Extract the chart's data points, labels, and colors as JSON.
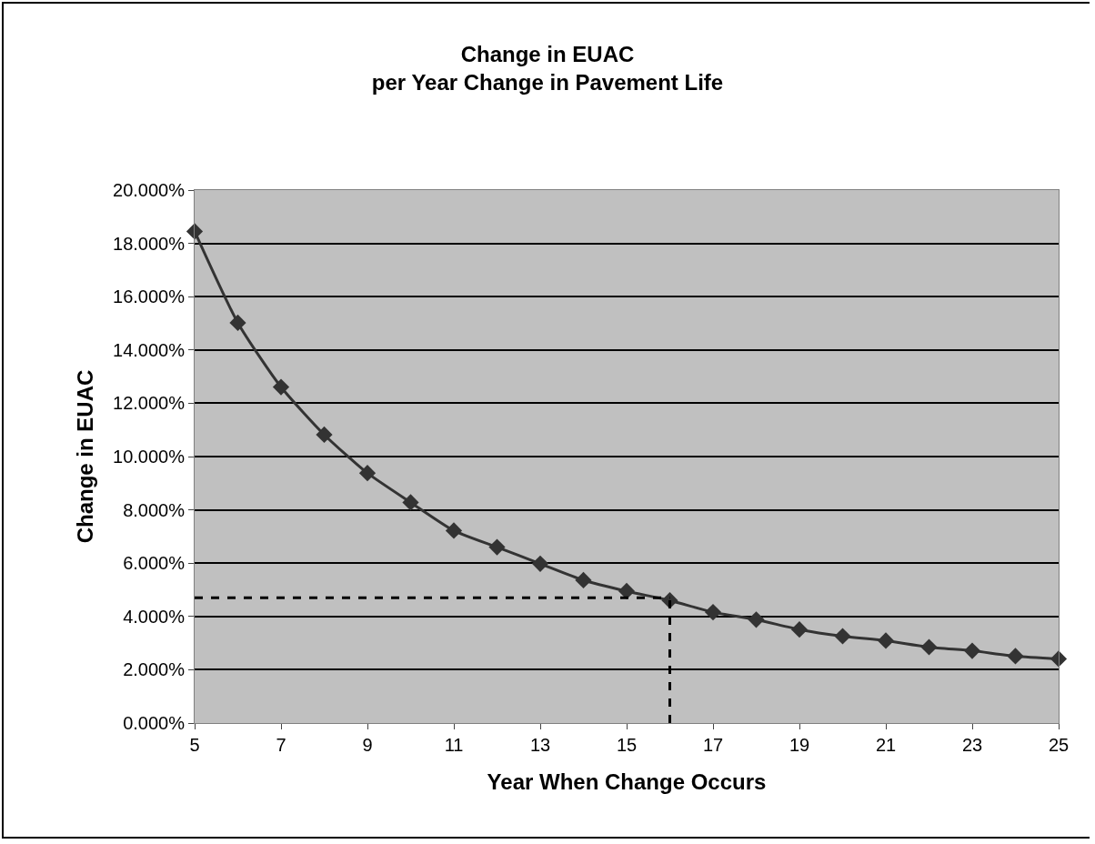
{
  "chart_data": {
    "type": "line",
    "title": "Change in EUAC\nper Year Change in Pavement Life",
    "xlabel": "Year When Change Occurs",
    "ylabel": "Change in EUAC",
    "x": [
      5,
      6,
      7,
      8,
      9,
      10,
      11,
      12,
      13,
      14,
      15,
      16,
      17,
      18,
      19,
      20,
      21,
      22,
      23,
      24,
      25
    ],
    "series": [
      {
        "color": "#333333",
        "values": [
          18.45,
          15.02,
          12.61,
          10.82,
          9.38,
          8.28,
          7.22,
          6.6,
          5.98,
          5.36,
          4.95,
          4.6,
          4.16,
          3.88,
          3.51,
          3.26,
          3.09,
          2.85,
          2.71,
          2.51,
          2.41
        ]
      }
    ],
    "xlim": [
      5,
      25
    ],
    "xticks": [
      5,
      7,
      9,
      11,
      13,
      15,
      17,
      19,
      21,
      23,
      25
    ],
    "ylim": [
      0,
      20
    ],
    "yticks": [
      {
        "value": 0,
        "label": "0.000%"
      },
      {
        "value": 2,
        "label": "2.000%"
      },
      {
        "value": 4,
        "label": "4.000%"
      },
      {
        "value": 6,
        "label": "6.000%"
      },
      {
        "value": 8,
        "label": "8.000%"
      },
      {
        "value": 10,
        "label": "10.000%"
      },
      {
        "value": 12,
        "label": "12.000%"
      },
      {
        "value": 14,
        "label": "14.000%"
      },
      {
        "value": 16,
        "label": "16.000%"
      },
      {
        "value": 18,
        "label": "18.000%"
      },
      {
        "value": 20,
        "label": "20.000%"
      }
    ],
    "ref_lines": [
      {
        "axis": "y",
        "value": 4.7,
        "color": "#000000",
        "line_style": "dashed"
      },
      {
        "axis": "x",
        "value": 16,
        "color": "#000000",
        "line_style": "dashed"
      }
    ],
    "grid": "y",
    "marker": "diamond",
    "line_style": "solid"
  }
}
